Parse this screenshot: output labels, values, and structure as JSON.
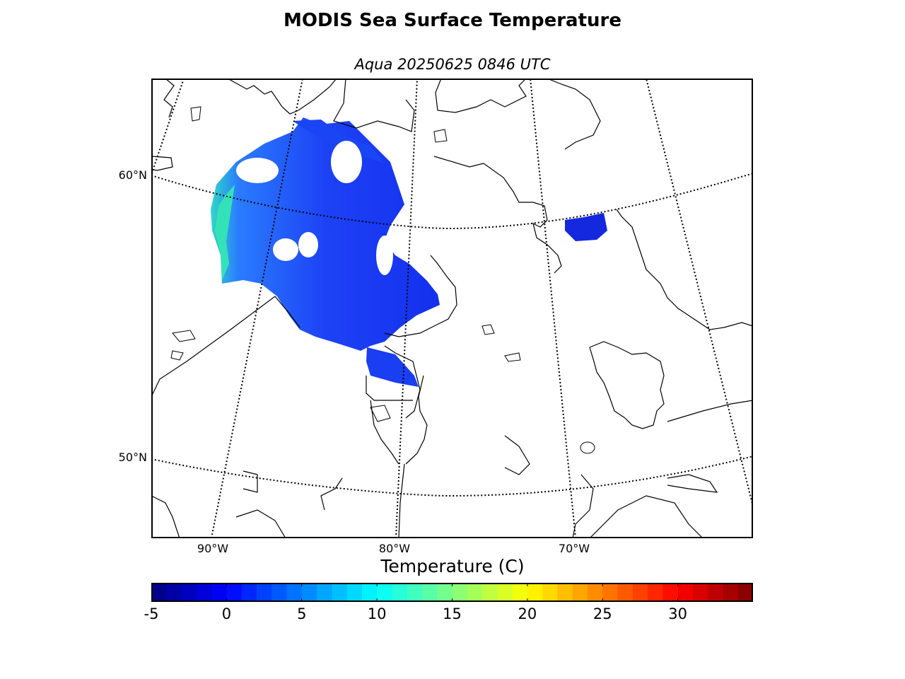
{
  "title": "MODIS Sea Surface Temperature",
  "subtitle": "Aqua 20250625 0846 UTC",
  "map": {
    "lat_labels": [
      "60°N",
      "50°N"
    ],
    "lon_labels": [
      "90°W",
      "80°W",
      "70°W"
    ],
    "land_color": "#ffffff",
    "coast_color": "#000000"
  },
  "colorbar": {
    "label": "Temperature (C)",
    "colormap": "jet",
    "range": [
      -5,
      35
    ],
    "ticks": [
      "-5",
      "0",
      "5",
      "10",
      "15",
      "20",
      "25",
      "30"
    ]
  }
}
